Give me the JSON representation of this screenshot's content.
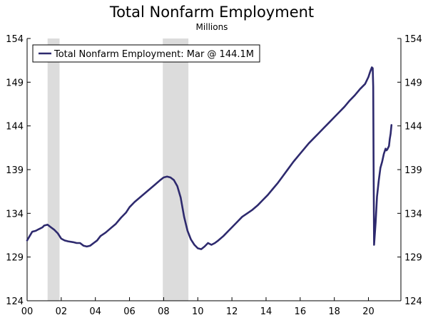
{
  "chart_data": {
    "type": "line",
    "title": "Total Nonfarm Employment",
    "subtitle": "Millions",
    "xlabel": "",
    "ylabel": "",
    "xlim": [
      2000,
      2021.9
    ],
    "ylim": [
      124,
      154
    ],
    "x_ticks": [
      {
        "value": 2000,
        "label": "00"
      },
      {
        "value": 2002,
        "label": "02"
      },
      {
        "value": 2004,
        "label": "04"
      },
      {
        "value": 2006,
        "label": "06"
      },
      {
        "value": 2008,
        "label": "08"
      },
      {
        "value": 2010,
        "label": "10"
      },
      {
        "value": 2012,
        "label": "12"
      },
      {
        "value": 2014,
        "label": "14"
      },
      {
        "value": 2016,
        "label": "16"
      },
      {
        "value": 2018,
        "label": "18"
      },
      {
        "value": 2020,
        "label": "20"
      }
    ],
    "y_ticks": [
      124,
      129,
      134,
      139,
      144,
      149,
      154
    ],
    "recessions": [
      [
        2001.2,
        2001.9
      ],
      [
        2007.95,
        2009.45
      ]
    ],
    "legend": {
      "position": "top-left",
      "label": "Total Nonfarm Employment: Mar @ 144.1M"
    },
    "colors": {
      "line": "#2e2a6e",
      "recession": "#dcdcdc",
      "axis": "#000000"
    },
    "series": [
      {
        "name": "Total Nonfarm Employment: Mar @ 144.1M",
        "points": [
          [
            2000.0,
            130.9
          ],
          [
            2000.15,
            131.4
          ],
          [
            2000.3,
            131.9
          ],
          [
            2000.5,
            132.0
          ],
          [
            2000.7,
            132.2
          ],
          [
            2000.9,
            132.4
          ],
          [
            2001.0,
            132.6
          ],
          [
            2001.2,
            132.7
          ],
          [
            2001.4,
            132.4
          ],
          [
            2001.6,
            132.1
          ],
          [
            2001.8,
            131.7
          ],
          [
            2002.0,
            131.1
          ],
          [
            2002.2,
            130.9
          ],
          [
            2002.4,
            130.8
          ],
          [
            2002.7,
            130.7
          ],
          [
            2002.9,
            130.6
          ],
          [
            2003.1,
            130.6
          ],
          [
            2003.3,
            130.3
          ],
          [
            2003.5,
            130.2
          ],
          [
            2003.7,
            130.3
          ],
          [
            2003.9,
            130.6
          ],
          [
            2004.1,
            130.9
          ],
          [
            2004.3,
            131.4
          ],
          [
            2004.6,
            131.8
          ],
          [
            2004.9,
            132.3
          ],
          [
            2005.2,
            132.8
          ],
          [
            2005.5,
            133.5
          ],
          [
            2005.8,
            134.1
          ],
          [
            2006.0,
            134.7
          ],
          [
            2006.3,
            135.3
          ],
          [
            2006.6,
            135.8
          ],
          [
            2006.9,
            136.3
          ],
          [
            2007.2,
            136.8
          ],
          [
            2007.5,
            137.3
          ],
          [
            2007.8,
            137.8
          ],
          [
            2008.0,
            138.1
          ],
          [
            2008.2,
            138.2
          ],
          [
            2008.4,
            138.1
          ],
          [
            2008.6,
            137.8
          ],
          [
            2008.8,
            137.1
          ],
          [
            2009.0,
            135.8
          ],
          [
            2009.2,
            133.6
          ],
          [
            2009.4,
            132.0
          ],
          [
            2009.6,
            131.0
          ],
          [
            2009.8,
            130.4
          ],
          [
            2010.0,
            130.0
          ],
          [
            2010.2,
            129.9
          ],
          [
            2010.4,
            130.2
          ],
          [
            2010.6,
            130.6
          ],
          [
            2010.8,
            130.4
          ],
          [
            2011.0,
            130.6
          ],
          [
            2011.2,
            130.9
          ],
          [
            2011.5,
            131.4
          ],
          [
            2011.8,
            132.0
          ],
          [
            2012.0,
            132.4
          ],
          [
            2012.3,
            133.0
          ],
          [
            2012.6,
            133.6
          ],
          [
            2012.9,
            134.0
          ],
          [
            2013.2,
            134.4
          ],
          [
            2013.5,
            134.9
          ],
          [
            2013.8,
            135.5
          ],
          [
            2014.1,
            136.1
          ],
          [
            2014.4,
            136.8
          ],
          [
            2014.7,
            137.5
          ],
          [
            2015.0,
            138.3
          ],
          [
            2015.3,
            139.1
          ],
          [
            2015.6,
            139.9
          ],
          [
            2015.9,
            140.6
          ],
          [
            2016.2,
            141.3
          ],
          [
            2016.5,
            142.0
          ],
          [
            2016.8,
            142.6
          ],
          [
            2017.1,
            143.2
          ],
          [
            2017.4,
            143.8
          ],
          [
            2017.7,
            144.4
          ],
          [
            2018.0,
            145.0
          ],
          [
            2018.3,
            145.6
          ],
          [
            2018.6,
            146.2
          ],
          [
            2018.9,
            146.9
          ],
          [
            2019.2,
            147.5
          ],
          [
            2019.5,
            148.2
          ],
          [
            2019.8,
            148.8
          ],
          [
            2020.0,
            149.6
          ],
          [
            2020.1,
            150.2
          ],
          [
            2020.2,
            150.7
          ],
          [
            2020.25,
            150.6
          ],
          [
            2020.28,
            148.5
          ],
          [
            2020.3,
            140.0
          ],
          [
            2020.33,
            130.4
          ],
          [
            2020.42,
            133.0
          ],
          [
            2020.5,
            135.9
          ],
          [
            2020.6,
            137.7
          ],
          [
            2020.7,
            139.2
          ],
          [
            2020.8,
            139.9
          ],
          [
            2020.9,
            140.8
          ],
          [
            2021.0,
            141.4
          ],
          [
            2021.05,
            141.2
          ],
          [
            2021.1,
            141.3
          ],
          [
            2021.2,
            141.7
          ],
          [
            2021.25,
            142.5
          ],
          [
            2021.3,
            143.1
          ],
          [
            2021.35,
            144.1
          ]
        ]
      }
    ]
  }
}
